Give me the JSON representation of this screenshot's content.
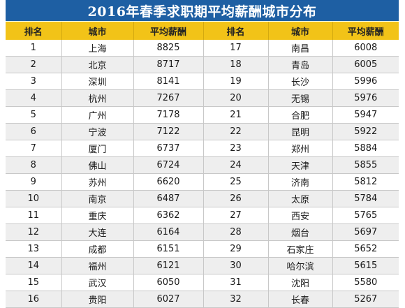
{
  "title": "2016年春季求职期平均薪酬城市分布",
  "colors": {
    "title_bg": "#1e5fa3",
    "header_bg": "#f2c318",
    "row_alt": "#eeeeee"
  },
  "table": {
    "headers": [
      "排名",
      "城市",
      "平均薪酬",
      "排名",
      "城市",
      "平均薪酬"
    ],
    "rows": [
      {
        "rank1": "1",
        "city1": "上海",
        "salary1": "8825",
        "rank2": "17",
        "city2": "南昌",
        "salary2": "6008"
      },
      {
        "rank1": "2",
        "city1": "北京",
        "salary1": "8717",
        "rank2": "18",
        "city2": "青岛",
        "salary2": "6005"
      },
      {
        "rank1": "3",
        "city1": "深圳",
        "salary1": "8141",
        "rank2": "19",
        "city2": "长沙",
        "salary2": "5996"
      },
      {
        "rank1": "4",
        "city1": "杭州",
        "salary1": "7267",
        "rank2": "20",
        "city2": "无锡",
        "salary2": "5976"
      },
      {
        "rank1": "5",
        "city1": "广州",
        "salary1": "7178",
        "rank2": "21",
        "city2": "合肥",
        "salary2": "5947"
      },
      {
        "rank1": "6",
        "city1": "宁波",
        "salary1": "7122",
        "rank2": "22",
        "city2": "昆明",
        "salary2": "5922"
      },
      {
        "rank1": "7",
        "city1": "厦门",
        "salary1": "6737",
        "rank2": "23",
        "city2": "郑州",
        "salary2": "5884"
      },
      {
        "rank1": "8",
        "city1": "佛山",
        "salary1": "6724",
        "rank2": "24",
        "city2": "天津",
        "salary2": "5855"
      },
      {
        "rank1": "9",
        "city1": "苏州",
        "salary1": "6620",
        "rank2": "25",
        "city2": "济南",
        "salary2": "5812"
      },
      {
        "rank1": "10",
        "city1": "南京",
        "salary1": "6487",
        "rank2": "26",
        "city2": "太原",
        "salary2": "5784"
      },
      {
        "rank1": "11",
        "city1": "重庆",
        "salary1": "6362",
        "rank2": "27",
        "city2": "西安",
        "salary2": "5765"
      },
      {
        "rank1": "12",
        "city1": "大连",
        "salary1": "6164",
        "rank2": "28",
        "city2": "烟台",
        "salary2": "5697"
      },
      {
        "rank1": "13",
        "city1": "成都",
        "salary1": "6151",
        "rank2": "29",
        "city2": "石家庄",
        "salary2": "5652"
      },
      {
        "rank1": "14",
        "city1": "福州",
        "salary1": "6121",
        "rank2": "30",
        "city2": "哈尔滨",
        "salary2": "5615"
      },
      {
        "rank1": "15",
        "city1": "武汉",
        "salary1": "6050",
        "rank2": "31",
        "city2": "沈阳",
        "salary2": "5580"
      },
      {
        "rank1": "16",
        "city1": "贵阳",
        "salary1": "6027",
        "rank2": "32",
        "city2": "长春",
        "salary2": "5267"
      }
    ]
  }
}
